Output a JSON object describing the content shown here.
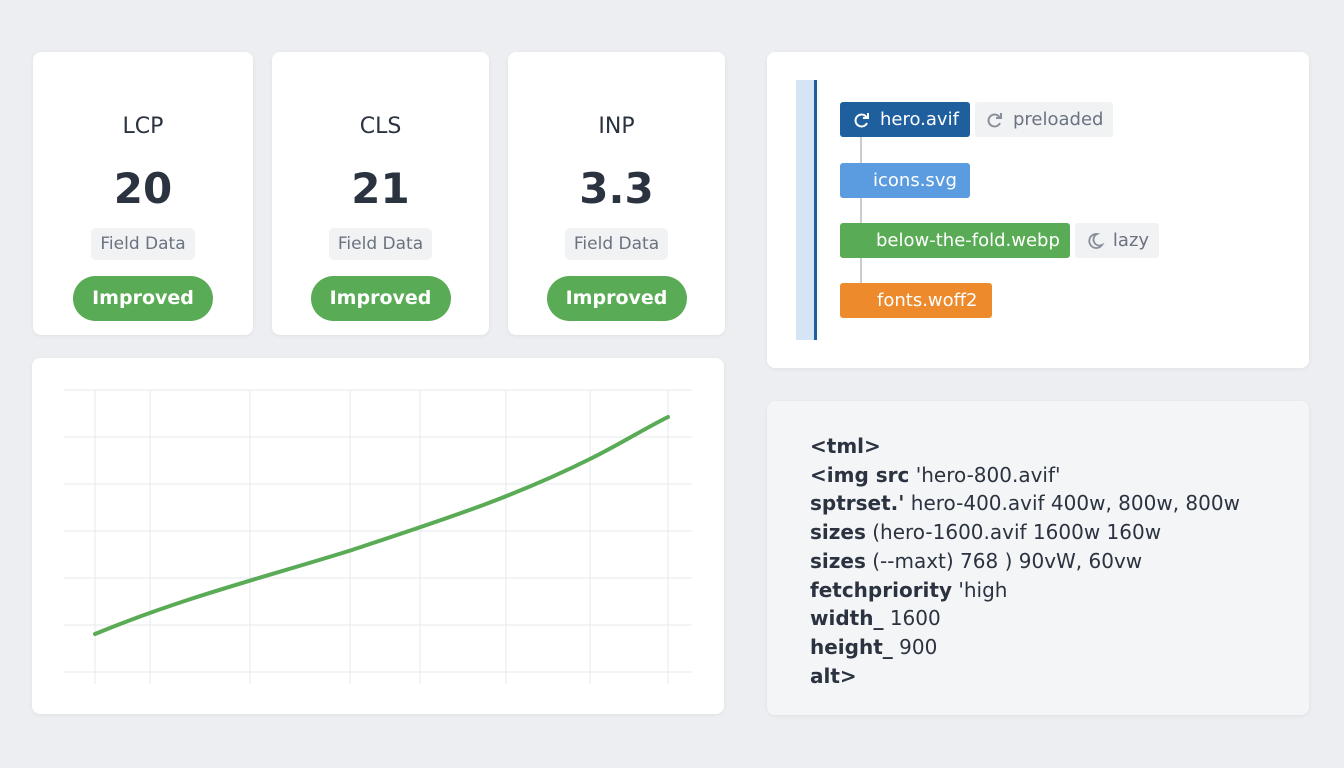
{
  "metrics": [
    {
      "label": "LCP",
      "value": 20,
      "source": "Field Data",
      "status": "Improved"
    },
    {
      "label": "CLS",
      "value": 21,
      "source": "Field Data",
      "status": "Improved"
    },
    {
      "label": "INP",
      "value": 3.3,
      "source": "Field Data",
      "status": "Improved"
    }
  ],
  "waterfall": {
    "items": [
      {
        "name": "hero.avif",
        "tag": "preloaded"
      },
      {
        "name": "icons.svg"
      },
      {
        "name": "below-the-fold.webp",
        "tag": "lazy"
      },
      {
        "name": "fonts.woff2"
      }
    ]
  },
  "code": {
    "lines": [
      {
        "key": "<tml>"
      },
      {
        "key": "<img src",
        "rest": "'hero-800.avif'"
      },
      {
        "key": "sptrset.'",
        "rest": "hero-400.avif 400w, 800w, 800w"
      },
      {
        "key": "sizes",
        "rest": "(hero-1600.avif 1600w 160w"
      },
      {
        "key": "sizes",
        "rest": "(--maxt) 768 ) 90vW, 60vw"
      },
      {
        "key": "fetchpriority",
        "rest": "'high"
      },
      {
        "key": "width_",
        "rest": "1600"
      },
      {
        "key": "height_",
        "rest": "900"
      },
      {
        "key": "alt>"
      }
    ]
  }
}
